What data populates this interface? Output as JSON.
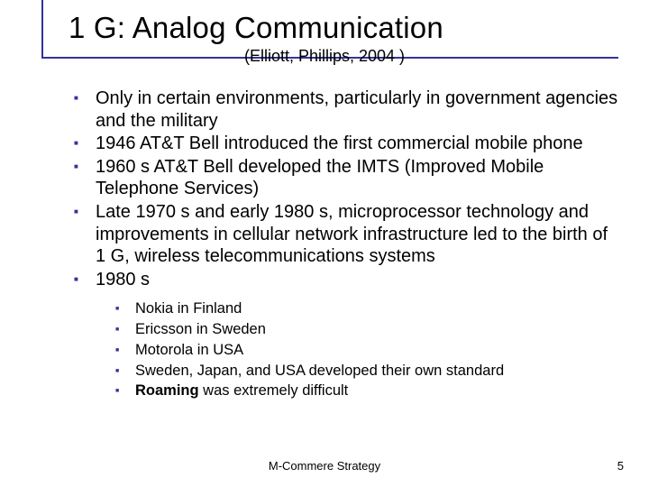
{
  "colors": {
    "accent": "#333399",
    "text": "#000000",
    "background": "#ffffff"
  },
  "typography": {
    "title_font": "Verdana",
    "title_size_pt": 33,
    "subtitle_size_pt": 18,
    "body_size_pt": 20,
    "sub_size_pt": 16.5,
    "footer_size_pt": 13
  },
  "title": "1 G: Analog Communication",
  "subtitle": "(Elliott, Phillips, 2004 )",
  "bullets": [
    "Only in certain environments, particularly in government agencies and the military",
    "1946 AT&T Bell introduced the first commercial mobile phone",
    "1960 s AT&T Bell developed the IMTS (Improved Mobile Telephone Services)",
    "Late 1970 s and early 1980 s, microprocessor technology and improvements in cellular network infrastructure led to the birth of 1 G, wireless telecommunications systems",
    "1980 s"
  ],
  "sub_bullets": [
    "Nokia in Finland",
    "Ericsson in Sweden",
    "Motorola in USA",
    "Sweden, Japan, and USA developed their own standard"
  ],
  "sub_bullet_bold_prefix": "Roaming",
  "sub_bullet_bold_rest": " was extremely difficult",
  "footer": {
    "center": "M-Commere Strategy",
    "page": "5"
  }
}
